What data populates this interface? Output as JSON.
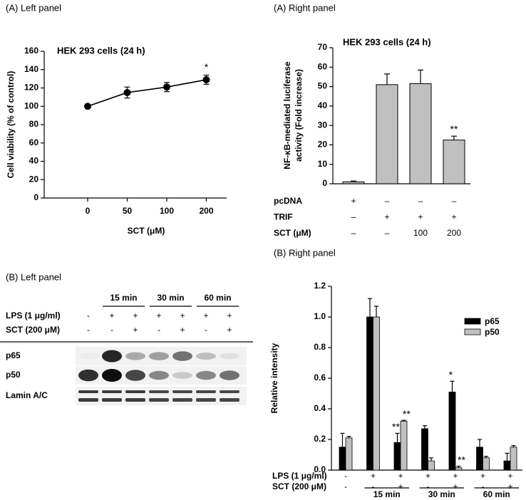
{
  "chart_data": [
    {
      "type": "line",
      "panel_label": "(A) Left panel",
      "title": "HEK 293 cells (24 h)",
      "categories": [
        "0",
        "50",
        "100",
        "200"
      ],
      "values": [
        100,
        115,
        121,
        129
      ],
      "errors": [
        1,
        6,
        5,
        5
      ],
      "marks": [
        null,
        null,
        null,
        "*"
      ],
      "color": "#000000",
      "x_label": "SCT (μM)",
      "y_label": "Cell viability (% of control)",
      "ylim": [
        0,
        160
      ],
      "yticks": [
        0,
        20,
        40,
        60,
        80,
        100,
        120,
        140,
        160
      ]
    },
    {
      "type": "bar",
      "panel_label": "(A) Right panel",
      "title": "HEK 293 cells (24 h)",
      "values": [
        1,
        51,
        51.5,
        22.5
      ],
      "errors": [
        0.4,
        5.5,
        7,
        2
      ],
      "marks": [
        null,
        null,
        null,
        "**"
      ],
      "color": "#c0c0c0",
      "y_label": [
        "NF-κB-mediated luciferase",
        "activity (Fold increase)"
      ],
      "conditions": [
        {
          "label": "pcDNA",
          "values": [
            "+",
            "–",
            "–",
            "–"
          ]
        },
        {
          "label": "TRIF",
          "values": [
            "–",
            "+",
            "+",
            "+"
          ]
        },
        {
          "label": "SCT (μM)",
          "values": [
            "–",
            "–",
            "100",
            "200"
          ]
        }
      ],
      "ylim": [
        0,
        70
      ],
      "yticks": [
        0,
        10,
        20,
        30,
        40,
        50,
        60,
        70
      ]
    },
    {
      "type": "grouped_bar",
      "panel_label": "(B) Right panel",
      "y_label": "Relative intensity",
      "series": [
        {
          "name": "p65",
          "color": "#000000",
          "values": [
            0.15,
            1.0,
            0.18,
            0.27,
            0.51,
            0.15,
            0.06
          ],
          "errors": [
            0.09,
            0.12,
            0.06,
            0.02,
            0.07,
            0.05,
            0.05
          ],
          "marks": [
            null,
            null,
            "**",
            null,
            "*",
            null,
            null
          ]
        },
        {
          "name": "p50",
          "color": "#c0c0c0",
          "values": [
            0.21,
            1.0,
            0.32,
            0.06,
            0.015,
            0.08,
            0.15
          ],
          "errors": [
            0.01,
            0.07,
            0.005,
            0.02,
            0.01,
            0.01,
            0.01
          ],
          "marks": [
            null,
            null,
            "**",
            null,
            "**",
            null,
            null
          ]
        }
      ],
      "conditions": [
        {
          "label": "LPS (1 μg/ml)",
          "values": [
            "-",
            "+",
            "+",
            "+",
            "+",
            "+",
            "+"
          ]
        },
        {
          "label": "SCT (200 μM)",
          "values": [
            "-",
            "-",
            "+",
            "-",
            "+",
            "-",
            "+"
          ]
        }
      ],
      "groups": [
        "15 min",
        "30 min",
        "60 min"
      ],
      "legend": "top-right",
      "ylim": [
        0,
        1.2
      ],
      "yticks": [
        {
          "value": 0,
          "label": "0.0"
        },
        0.2,
        0.4,
        0.6,
        0.8,
        {
          "value": 1,
          "label": "1.0"
        },
        1.2
      ]
    }
  ],
  "blot": {
    "panel_label": "(B) Left panel",
    "groups": [
      "15 min",
      "30 min",
      "60 min"
    ],
    "conditions": [
      {
        "label": "LPS (1 μg/ml)",
        "values": [
          "-",
          "+",
          "+",
          "+",
          "+",
          "+",
          "+"
        ]
      },
      {
        "label": "SCT (200 μM)",
        "values": [
          "-",
          "-",
          "+",
          "-",
          "+",
          "-",
          "+"
        ]
      }
    ],
    "bands": [
      "p65",
      "p50",
      "Lamin A/C"
    ]
  }
}
